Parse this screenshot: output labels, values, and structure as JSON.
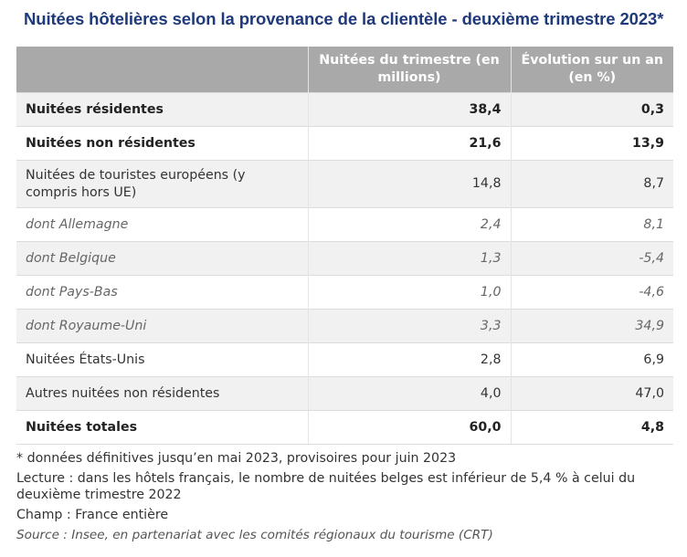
{
  "title": "Nuitées hôtelières selon la provenance de la clientèle - deuxième trimestre 2023*",
  "table": {
    "headers": [
      "",
      "Nuitées du trimestre (en millions)",
      "Évolution sur un an (en %)"
    ],
    "rows": [
      {
        "label": "Nuitées résidentes",
        "nights": "38,4",
        "change": "0,3"
      },
      {
        "label": "Nuitées non résidentes",
        "nights": "21,6",
        "change": "13,9"
      },
      {
        "label": "Nuitées de touristes européens (y compris hors UE)",
        "nights": "14,8",
        "change": "8,7"
      },
      {
        "label": "dont Allemagne",
        "nights": "2,4",
        "change": "8,1"
      },
      {
        "label": "dont Belgique",
        "nights": "1,3",
        "change": "-5,4"
      },
      {
        "label": "dont Pays-Bas",
        "nights": "1,0",
        "change": "-4,6"
      },
      {
        "label": "dont Royaume-Uni",
        "nights": "3,3",
        "change": "34,9"
      },
      {
        "label": "Nuitées États-Unis",
        "nights": "2,8",
        "change": "6,9"
      },
      {
        "label": "Autres nuitées non résidentes",
        "nights": "4,0",
        "change": "47,0"
      },
      {
        "label": "Nuitées totales",
        "nights": "60,0",
        "change": "4,8"
      }
    ]
  },
  "notes": {
    "footnote": "* données définitives jusqu’en mai 2023, provisoires pour juin 2023",
    "lecture": "Lecture : dans les hôtels français, le nombre de nuitées belges est inférieur de 5,4 % à celui du deuxième trimestre 2022",
    "champ": "Champ : France entière",
    "source": "Source : Insee, en partenariat avec les comités régionaux du tourisme (CRT)"
  }
}
